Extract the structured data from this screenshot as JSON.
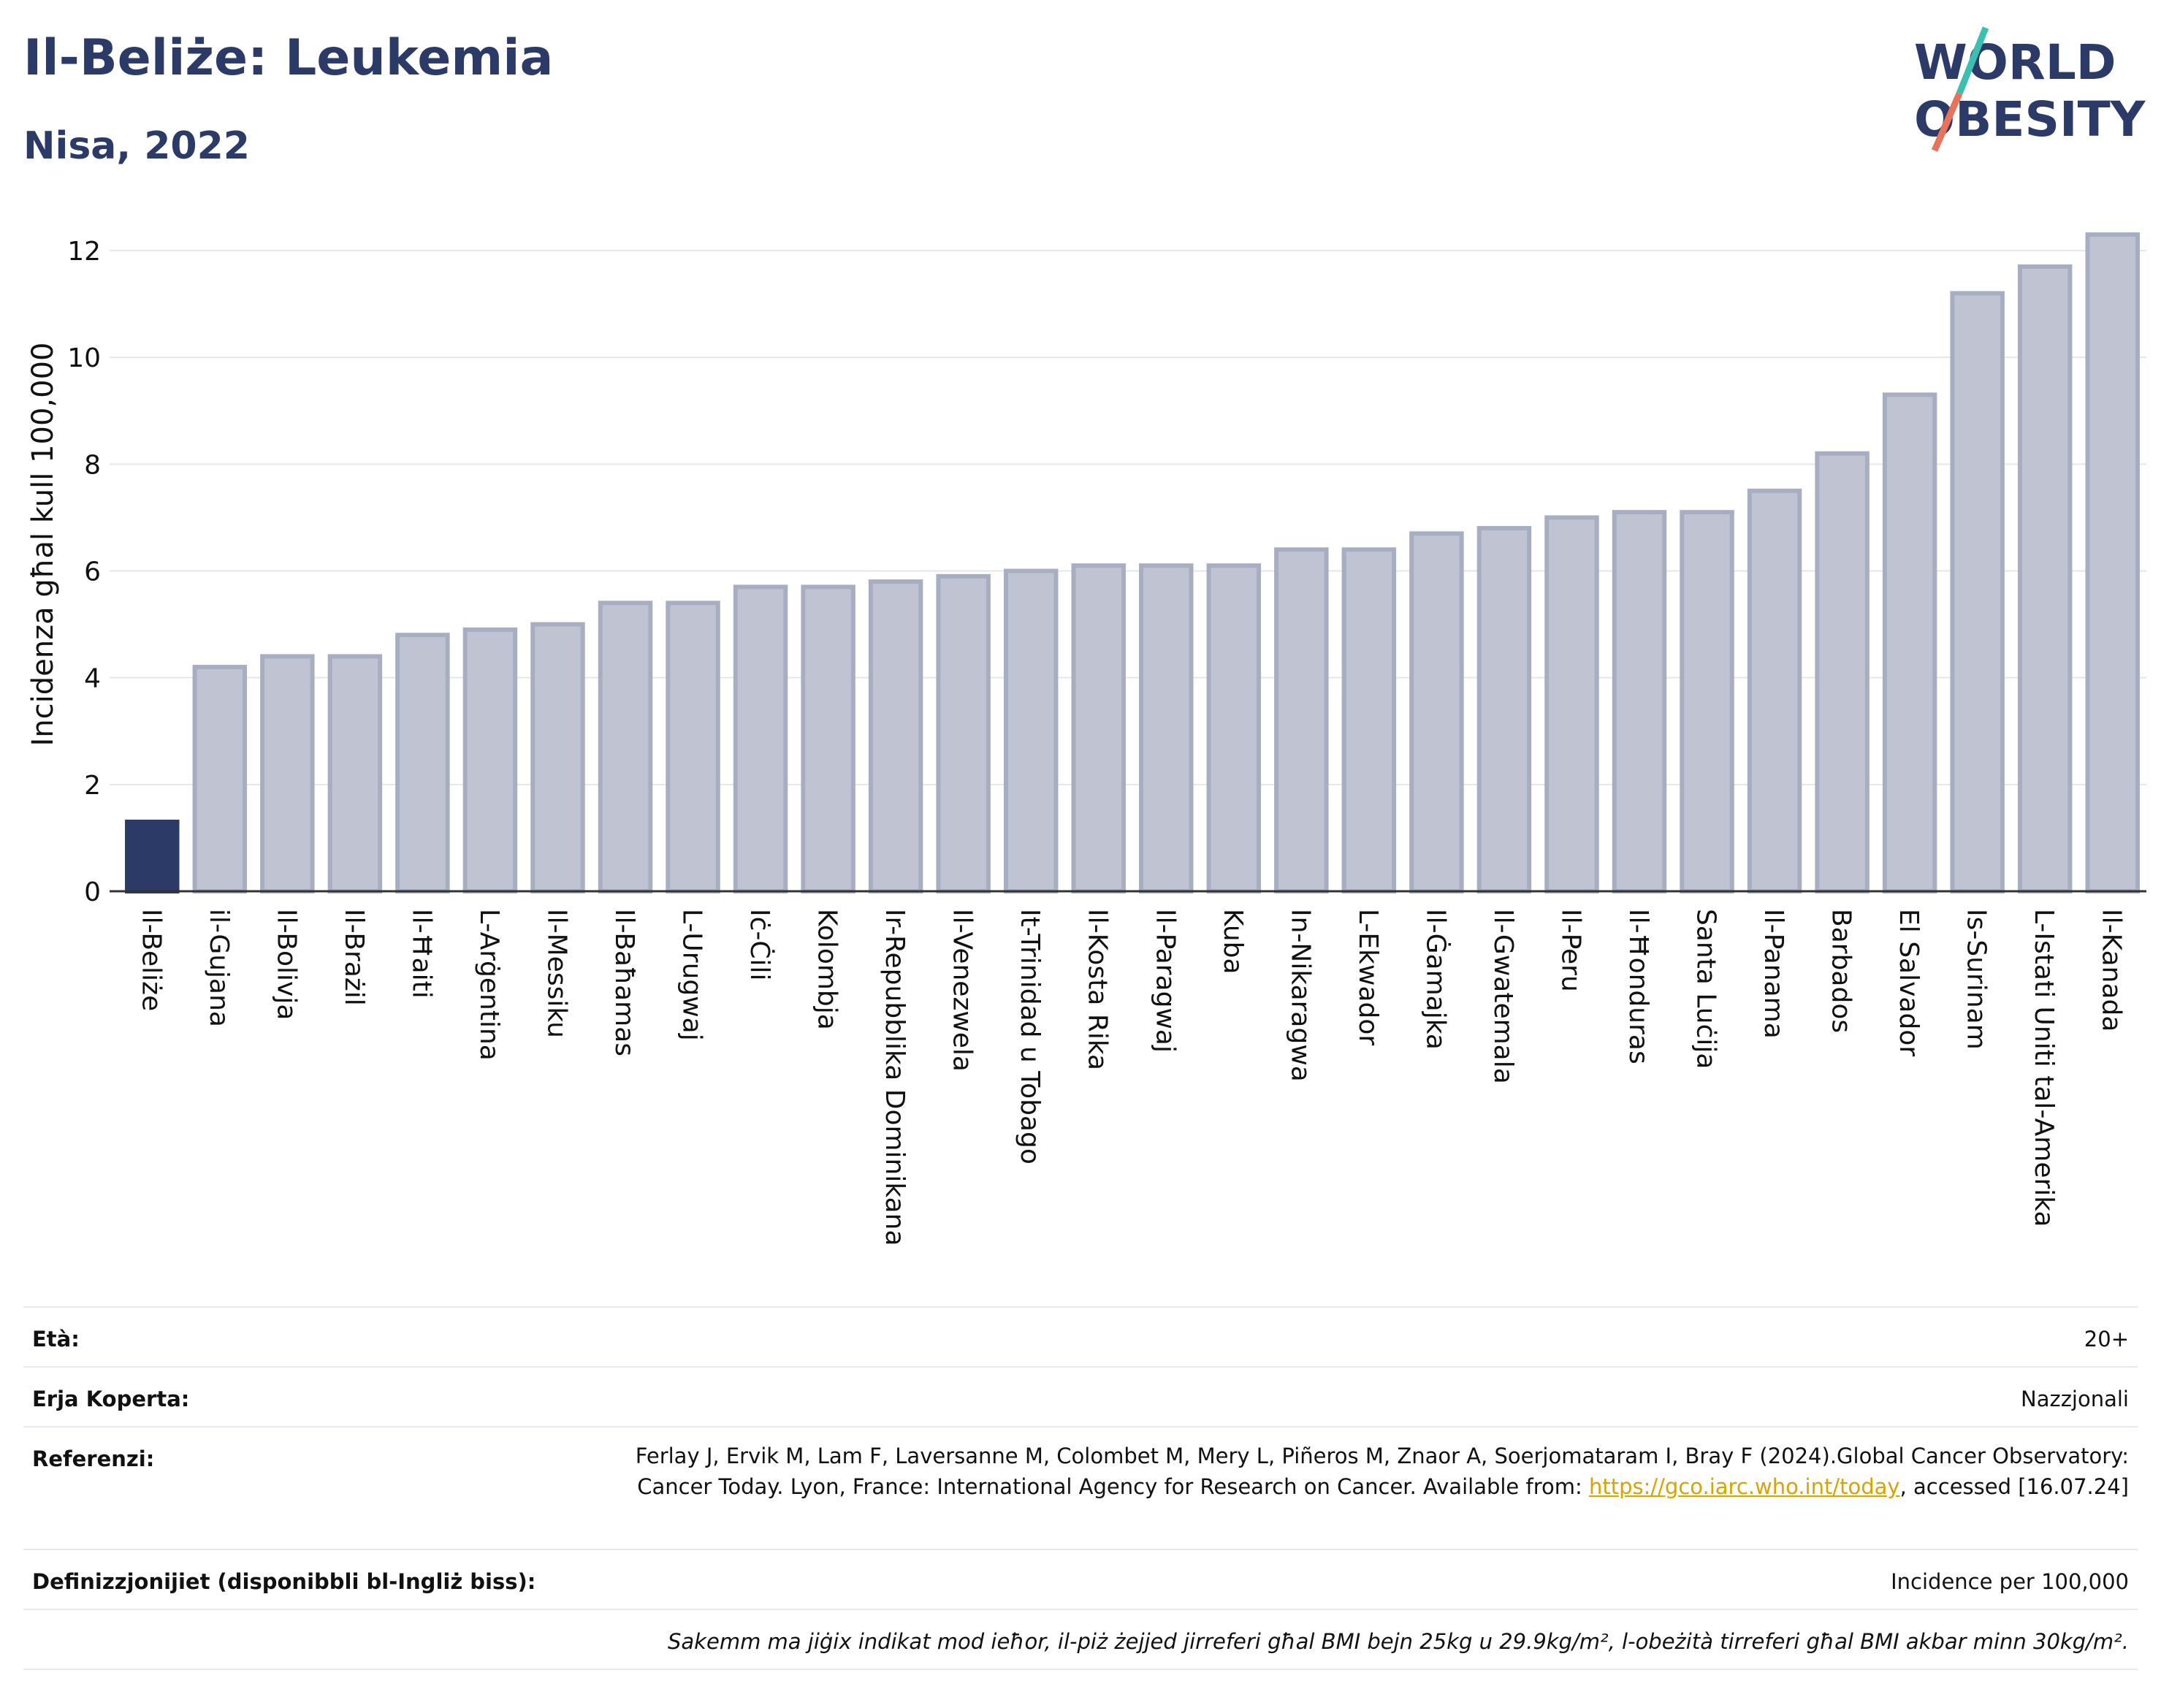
{
  "header": {
    "title": "Il-Beliże: Leukemia",
    "subtitle": "Nisa, 2022",
    "logo_line1": "WORLD",
    "logo_line2": "OBESITY"
  },
  "colors": {
    "highlight": "#2b3a67",
    "bar_fill": "#c0c4d2",
    "bar_stroke": "#a8aec2",
    "grid": "#e3e6ec",
    "logo_slash_teal": "#3bbfb0",
    "logo_slash_red": "#e8735a"
  },
  "chart_data": {
    "type": "bar",
    "ylabel": "Incidenza għal kull 100,000",
    "ylim": [
      0,
      12.5
    ],
    "yticks": [
      0,
      2,
      4,
      6,
      8,
      10,
      12
    ],
    "grid": true,
    "highlight_index": 0,
    "categories": [
      "Il-Beliże",
      "il-Gujana",
      "Il-Bolivja",
      "Il-Brażil",
      "Il-Ħaiti",
      "L-Arġentina",
      "Il-Messiku",
      "Il-Baħamas",
      "L-Urugwaj",
      "Iċ-Ċili",
      "Kolombja",
      "Ir-Repubblika Dominikana",
      "Il-Venezwela",
      "It-Trinidad u Tobago",
      "Il-Kosta Rika",
      "Il-Paragwaj",
      "Kuba",
      "In-Nikaragwa",
      "L-Ekwador",
      "Il-Ġamajka",
      "Il-Gwatemala",
      "Il-Peru",
      "Il-Ħonduras",
      "Santa Luċija",
      "Il-Panama",
      "Barbados",
      "El Salvador",
      "Is-Surinam",
      "L-Istati Uniti tal-Amerika",
      "Il-Kanada"
    ],
    "values": [
      1.3,
      4.2,
      4.4,
      4.4,
      4.8,
      4.9,
      5.0,
      5.4,
      5.4,
      5.7,
      5.7,
      5.8,
      5.9,
      6.0,
      6.1,
      6.1,
      6.1,
      6.4,
      6.4,
      6.7,
      6.8,
      7.0,
      7.1,
      7.1,
      7.5,
      8.2,
      9.3,
      11.2,
      11.7,
      12.3
    ]
  },
  "info": {
    "age_label": "Età:",
    "age_value": "20+",
    "area_label": "Erja Koperta:",
    "area_value": "Nazzjonali",
    "ref_label": "Referenzi:",
    "ref_text_1": "Ferlay J, Ervik M, Lam F, Laversanne M, Colombet M, Mery L, Piñeros M, Znaor A, Soerjomataram I, Bray F (2024).Global Cancer Observatory: Cancer Today. Lyon, France: International Agency for Research on Cancer. Available from: ",
    "ref_link": "https://gco.iarc.who.int/today",
    "ref_text_2": ", accessed [16.07.24]",
    "def_label": "Definizzjonijiet (disponibbli bl-Ingliż biss):",
    "def_value": "Incidence per 100,000",
    "note": "Sakemm ma jiġix indikat mod ieħor, il-piż żejjed jirreferi għal BMI bejn 25kg u 29.9kg/m², l-obeżità tirreferi għal BMI akbar minn 30kg/m²."
  }
}
